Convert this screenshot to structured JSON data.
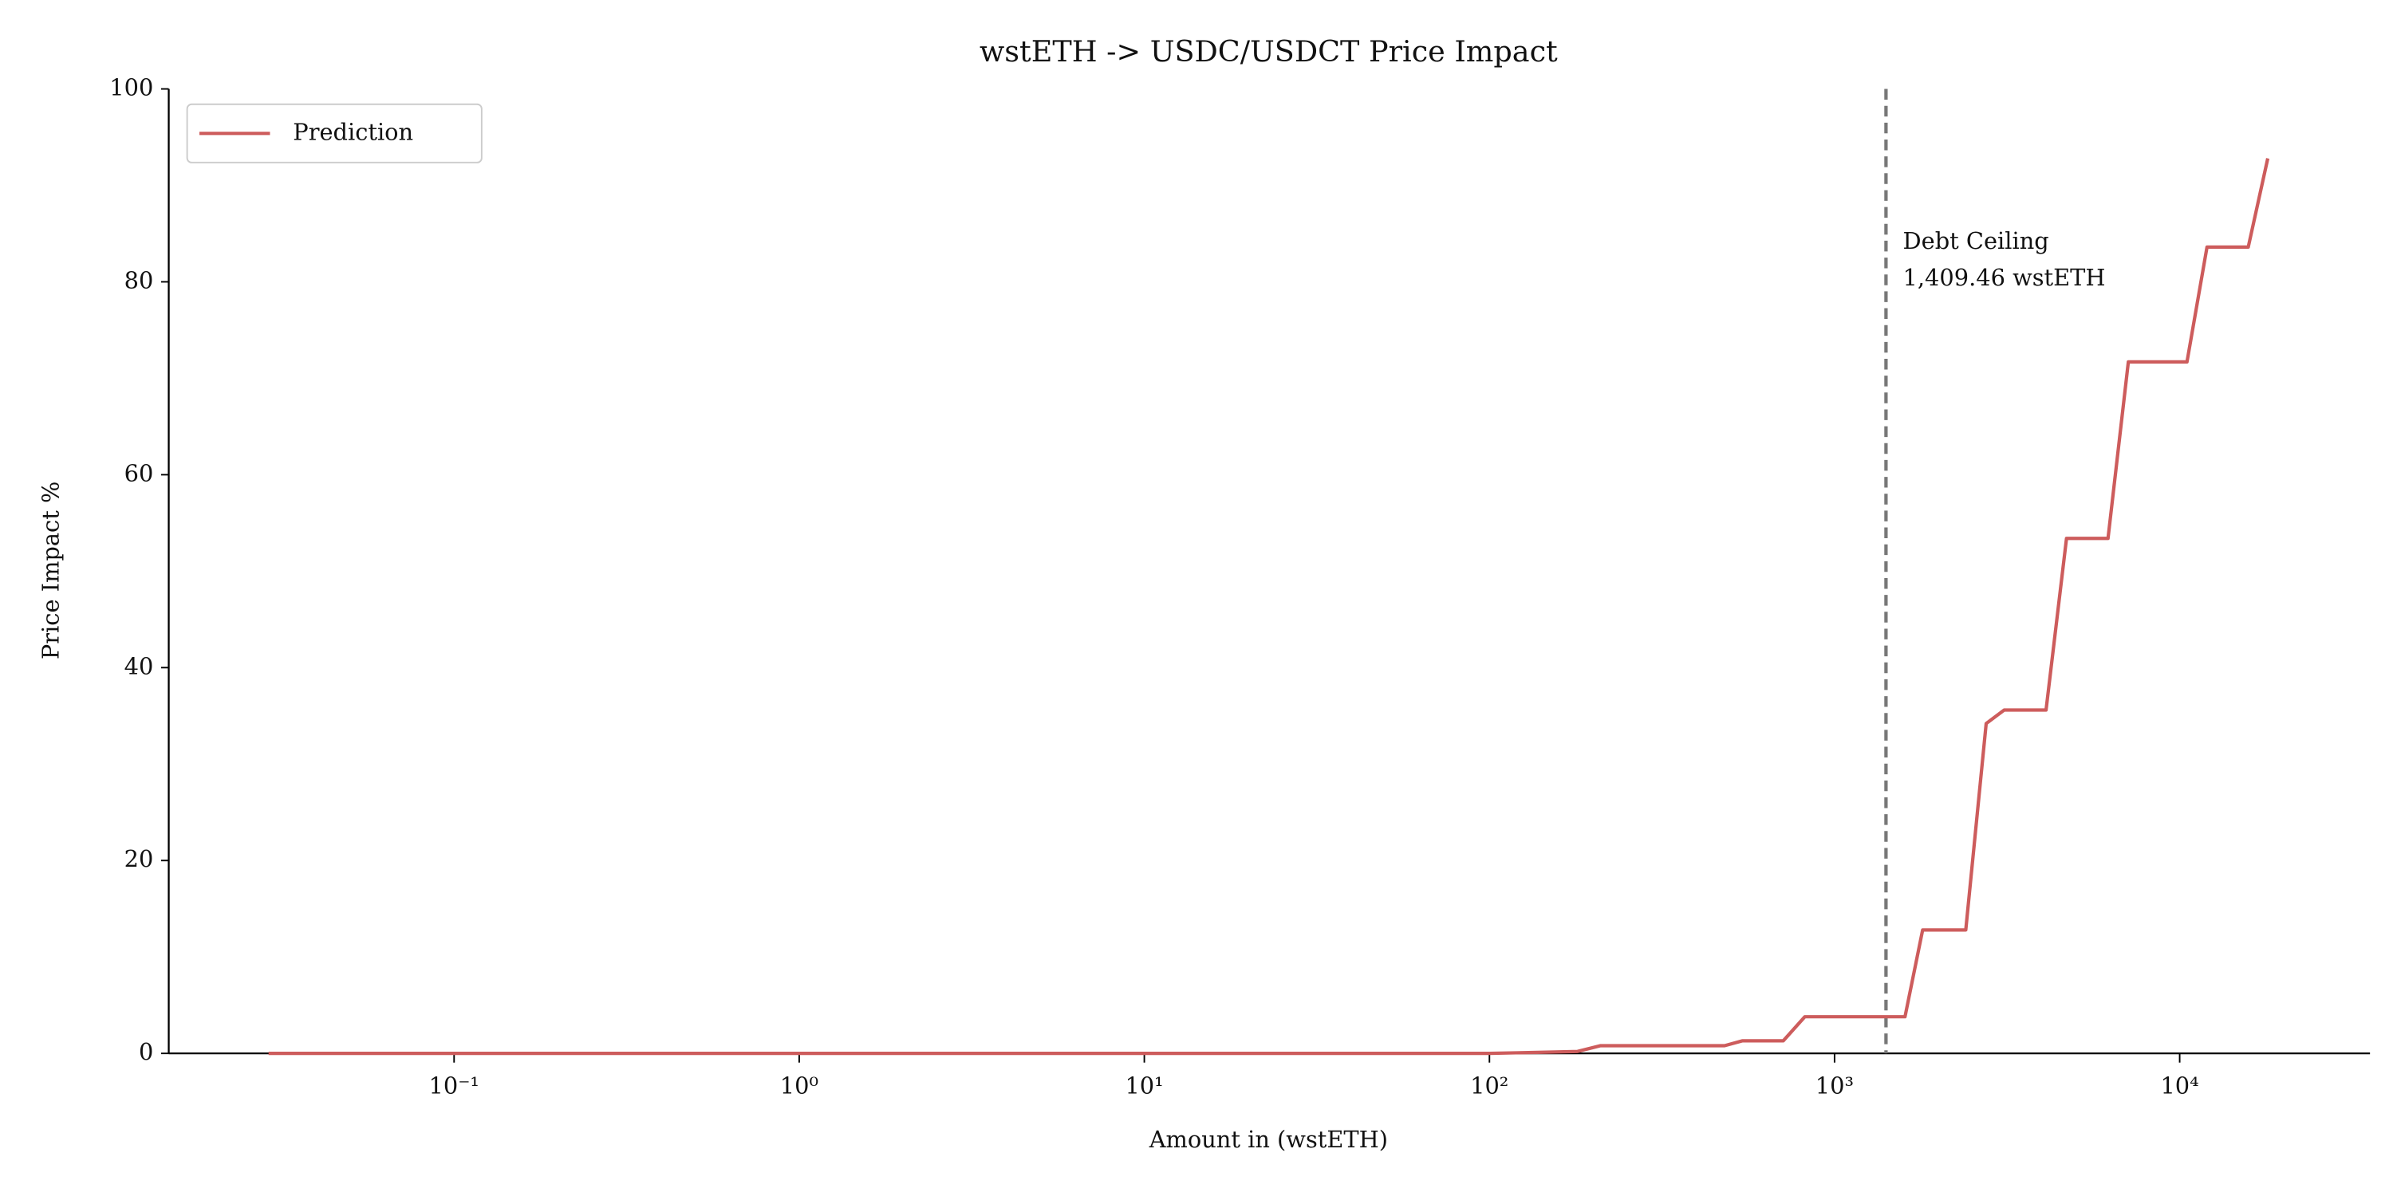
{
  "chart_data": {
    "type": "line",
    "title": "wstETH -> USDC/USDCT Price Impact",
    "x_label": "Amount in (wstETH)",
    "y_label": "Price Impact %",
    "x_scale": "log",
    "xlim": [
      0.0149,
      35600
    ],
    "ylim": [
      0,
      100
    ],
    "xticks": [
      {
        "value": 0.1,
        "label": "10⁻¹"
      },
      {
        "value": 1,
        "label": "10⁰"
      },
      {
        "value": 10,
        "label": "10¹"
      },
      {
        "value": 100,
        "label": "10²"
      },
      {
        "value": 1000,
        "label": "10³"
      },
      {
        "value": 10000,
        "label": "10⁴"
      }
    ],
    "yticks": [
      0,
      20,
      40,
      60,
      80,
      100
    ],
    "legend_position": "upper left",
    "x": [
      0.029,
      1,
      100,
      180,
      210,
      480,
      540,
      710,
      820,
      1600,
      1800,
      2400,
      2750,
      3100,
      4100,
      4700,
      6200,
      7100,
      10500,
      12000,
      15800,
      18000
    ],
    "series": [
      {
        "name": "Prediction",
        "color": "#cd5c5c",
        "values": [
          0,
          0,
          0,
          0.2,
          0.8,
          0.8,
          1.3,
          1.3,
          3.8,
          3.8,
          12.8,
          12.8,
          34.2,
          35.6,
          35.6,
          53.4,
          53.4,
          71.7,
          71.7,
          83.6,
          83.6,
          92.8
        ]
      }
    ],
    "vline": {
      "x": 1409.46,
      "color": "#777777",
      "label": [
        "Debt Ceiling",
        "1,409.46 wstETH"
      ]
    }
  }
}
